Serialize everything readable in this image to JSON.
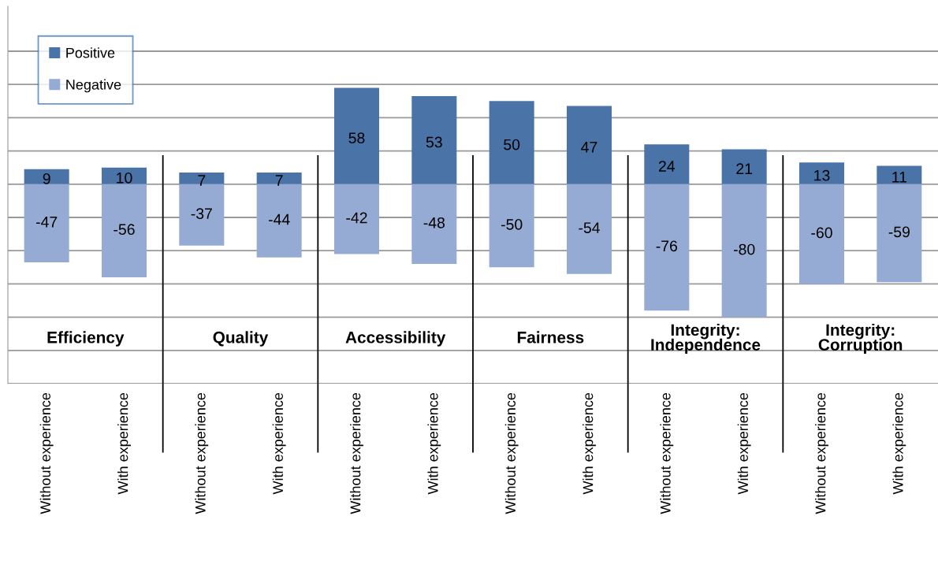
{
  "chart_data": {
    "type": "bar",
    "stacked": true,
    "categories": [
      "Without experience",
      "With experience",
      "Without experience",
      "With experience",
      "Without experience",
      "With experience",
      "Without experience",
      "With experience",
      "Without experience",
      "With experience",
      "Without experience",
      "With experience"
    ],
    "series": [
      {
        "name": "Positive",
        "color": "#4a74a8",
        "values": [
          9,
          10,
          7,
          7,
          58,
          53,
          50,
          47,
          24,
          21,
          13,
          11
        ]
      },
      {
        "name": "Negative",
        "color": "#95abd3",
        "values": [
          -47,
          -56,
          -37,
          -44,
          -42,
          -48,
          -50,
          -54,
          -76,
          -80,
          -60,
          -59
        ]
      }
    ],
    "annotations": [
      "Efficiency",
      "Quality",
      "Accessibility",
      "Fairness",
      "Integrity:\nIndependence",
      "Integrity:\nCorruption"
    ],
    "ylim": [
      -120,
      107
    ],
    "yticks": [
      {
        "value": -120,
        "label": null
      },
      {
        "value": -100,
        "label": null
      },
      {
        "value": -80,
        "label": null
      },
      {
        "value": -60,
        "label": null
      },
      {
        "value": -40,
        "label": null
      },
      {
        "value": -20,
        "label": null
      },
      {
        "value": 0,
        "label": null
      },
      {
        "value": 20,
        "label": null
      },
      {
        "value": 40,
        "label": null
      },
      {
        "value": 60,
        "label": null
      },
      {
        "value": 80,
        "label": null
      }
    ],
    "tick_labels": "x",
    "grid": "y",
    "data_labels": true,
    "legend": "top left"
  }
}
